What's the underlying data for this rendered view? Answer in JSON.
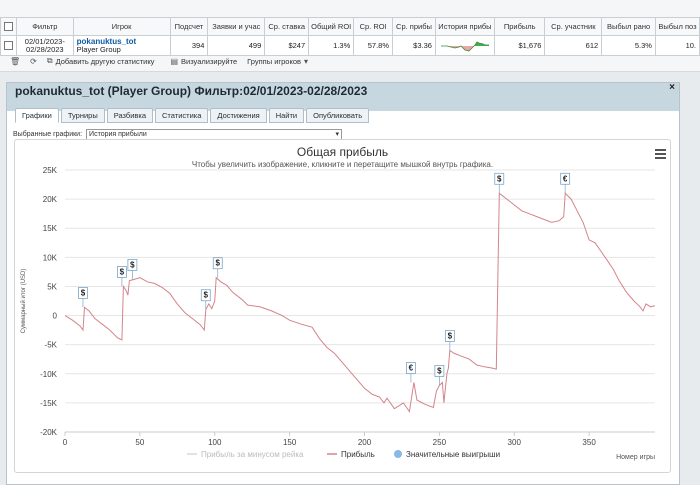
{
  "stats": {
    "headers": [
      "Фильтр",
      "Игрок",
      "Подсчет",
      "Заявки и учас",
      "Ср. ставка",
      "Общий ROI",
      "Ср. ROI",
      "Ср. прибы",
      "История прибы",
      "Прибыль",
      "Ср. участник",
      "Выбыл рано",
      "Выбыл поз"
    ],
    "row": {
      "filter_line1": "02/01/2023-",
      "filter_line2": "02/28/2023",
      "player_name": "pokanuktus_tot",
      "player_group": "Player Group",
      "count": "394",
      "entries": "499",
      "avg_stake": "$247",
      "total_roi": "1.3%",
      "avg_roi": "57.8%",
      "avg_profit": "$3.36",
      "profit": "$1,676",
      "avg_participants": "612",
      "early_out": "5.3%",
      "late_out": "10."
    },
    "actions": {
      "add_stat": "Добавить другую статистику",
      "visualize": "Визуализируйте",
      "groups": "Группы игроков"
    }
  },
  "panel": {
    "title": "pokanuktus_tot (Player Group) Фильтр:02/01/2023-02/28/2023",
    "close": "×",
    "tabs": [
      "Графики",
      "Турниры",
      "Разбивка",
      "Статистика",
      "Достижения",
      "Найти",
      "Опубликовать"
    ],
    "selector_label": "Выбранные графики:",
    "selector_value": "История прибыли"
  },
  "chart_data": {
    "type": "line",
    "title": "Общая прибыль",
    "subtitle": "Чтобы увеличить изображение, кликните и перетащите мышкой внутрь графика.",
    "ylabel": "Суммарный итог (USD)",
    "xlabel": "Номер игры",
    "xlim": [
      0,
      394
    ],
    "ylim": [
      -20000,
      25000
    ],
    "x_ticks": [
      0,
      50,
      100,
      150,
      200,
      250,
      300,
      350
    ],
    "y_ticks": [
      -20000,
      -15000,
      -10000,
      -5000,
      0,
      5000,
      10000,
      15000,
      20000,
      25000
    ],
    "y_tick_labels": [
      "-20K",
      "-15K",
      "-10K",
      "-5K",
      "0",
      "5K",
      "10K",
      "15K",
      "20K",
      "25K"
    ],
    "legend": [
      "Прибыль за минусом рейка",
      "Прибыль",
      "Значительные выигрыши"
    ],
    "legend_position": "bottom",
    "series": [
      {
        "name": "Прибыль",
        "color": "#d4848a",
        "points": [
          [
            0,
            0
          ],
          [
            5,
            -800
          ],
          [
            10,
            -1800
          ],
          [
            12,
            -2500
          ],
          [
            13,
            1400
          ],
          [
            16,
            800
          ],
          [
            20,
            -500
          ],
          [
            25,
            -1500
          ],
          [
            30,
            -2500
          ],
          [
            35,
            -3800
          ],
          [
            38,
            -4200
          ],
          [
            39,
            5000
          ],
          [
            41,
            4200
          ],
          [
            42,
            3500
          ],
          [
            43,
            6000
          ],
          [
            46,
            6200
          ],
          [
            50,
            6500
          ],
          [
            55,
            5800
          ],
          [
            60,
            5500
          ],
          [
            65,
            4800
          ],
          [
            70,
            3800
          ],
          [
            75,
            2000
          ],
          [
            80,
            500
          ],
          [
            85,
            -500
          ],
          [
            90,
            -1500
          ],
          [
            93,
            -2500
          ],
          [
            94,
            1000
          ],
          [
            96,
            2000
          ],
          [
            98,
            1200
          ],
          [
            100,
            2500
          ],
          [
            101,
            6500
          ],
          [
            104,
            5800
          ],
          [
            108,
            5200
          ],
          [
            112,
            4000
          ],
          [
            118,
            2800
          ],
          [
            122,
            1800
          ],
          [
            130,
            1500
          ],
          [
            138,
            800
          ],
          [
            145,
            0
          ],
          [
            150,
            -800
          ],
          [
            158,
            -1500
          ],
          [
            165,
            -2000
          ],
          [
            170,
            -4000
          ],
          [
            175,
            -5500
          ],
          [
            180,
            -6500
          ],
          [
            185,
            -8000
          ],
          [
            190,
            -9500
          ],
          [
            195,
            -11000
          ],
          [
            200,
            -12500
          ],
          [
            205,
            -13500
          ],
          [
            210,
            -14000
          ],
          [
            213,
            -15000
          ],
          [
            215,
            -14200
          ],
          [
            220,
            -16000
          ],
          [
            226,
            -15000
          ],
          [
            230,
            -16500
          ],
          [
            233,
            -11500
          ],
          [
            235,
            -14500
          ],
          [
            240,
            -15200
          ],
          [
            246,
            -15800
          ],
          [
            248,
            -13000
          ],
          [
            250,
            -12000
          ],
          [
            252,
            -11500
          ],
          [
            253,
            -15000
          ],
          [
            255,
            -10000
          ],
          [
            256,
            -9000
          ],
          [
            257,
            -6000
          ],
          [
            260,
            -6500
          ],
          [
            265,
            -7000
          ],
          [
            270,
            -7500
          ],
          [
            275,
            -8500
          ],
          [
            280,
            -8800
          ],
          [
            285,
            -9000
          ],
          [
            288,
            -9200
          ],
          [
            290,
            21000
          ],
          [
            295,
            20000
          ],
          [
            300,
            19000
          ],
          [
            305,
            18000
          ],
          [
            310,
            17500
          ],
          [
            315,
            17000
          ],
          [
            320,
            16500
          ],
          [
            325,
            16000
          ],
          [
            330,
            16300
          ],
          [
            333,
            17000
          ],
          [
            334,
            21000
          ],
          [
            338,
            20000
          ],
          [
            342,
            18000
          ],
          [
            346,
            16000
          ],
          [
            350,
            13000
          ],
          [
            354,
            12500
          ],
          [
            358,
            11000
          ],
          [
            362,
            9500
          ],
          [
            366,
            8000
          ],
          [
            370,
            6000
          ],
          [
            375,
            4000
          ],
          [
            380,
            2500
          ],
          [
            384,
            1500
          ],
          [
            386,
            800
          ],
          [
            388,
            2000
          ],
          [
            391,
            1500
          ],
          [
            394,
            1676
          ]
        ]
      }
    ],
    "significant_wins": [
      {
        "x": 12,
        "y": 1400,
        "label": "$"
      },
      {
        "x": 38,
        "y": 5000,
        "label": "$"
      },
      {
        "x": 45,
        "y": 6200,
        "label": "$"
      },
      {
        "x": 94,
        "y": 1000,
        "label": "$"
      },
      {
        "x": 102,
        "y": 6500,
        "label": "$"
      },
      {
        "x": 231,
        "y": -11500,
        "label": "€"
      },
      {
        "x": 250,
        "y": -12000,
        "label": "$"
      },
      {
        "x": 257,
        "y": -6000,
        "label": "$"
      },
      {
        "x": 290,
        "y": 21000,
        "label": "$"
      },
      {
        "x": 334,
        "y": 21000,
        "label": "€"
      }
    ],
    "grid": true
  }
}
